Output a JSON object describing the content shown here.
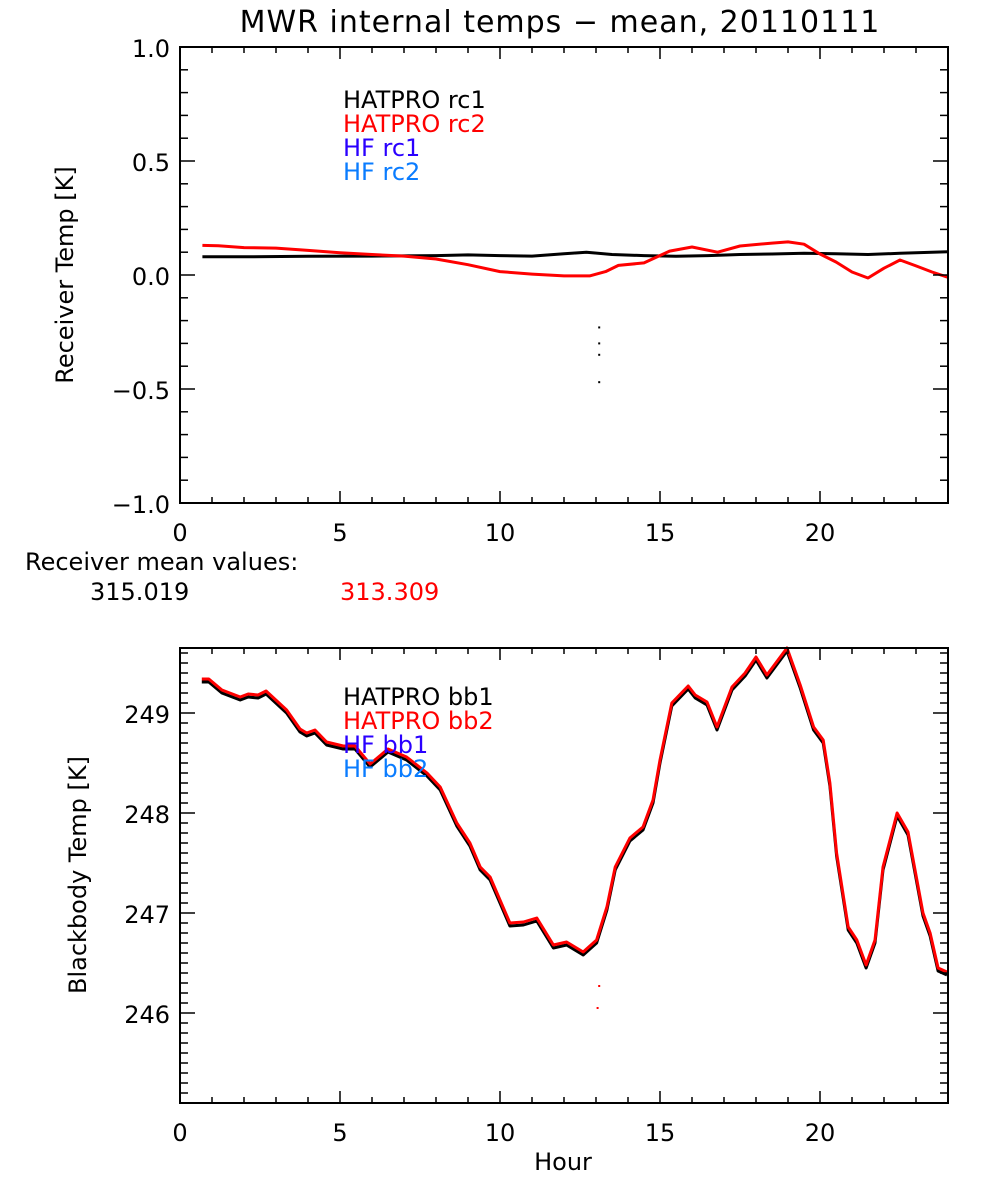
{
  "title": "MWR internal temps − mean, 20110111",
  "colors": {
    "hatpro1": "#000000",
    "hatpro2": "#ff0000",
    "hf1": "#2a00ff",
    "hf2": "#0a7cff"
  },
  "receiver_means": {
    "label": "Receiver mean values:",
    "hatpro_rc1": "315.019",
    "hatpro_rc2": "313.309"
  },
  "chart_data": [
    {
      "type": "line",
      "title": "",
      "xlabel": "",
      "ylabel": "Receiver Temp [K]",
      "xlim": [
        0,
        24
      ],
      "ylim": [
        -1.0,
        1.0
      ],
      "xticks": [
        "0",
        "5",
        "10",
        "15",
        "20"
      ],
      "yticks": [
        "−1.0",
        "−0.5",
        "0.0",
        "0.5",
        "1.0"
      ],
      "ytick_values": [
        -1.0,
        -0.5,
        0.0,
        0.5,
        1.0
      ],
      "xtick_values": [
        0,
        5,
        10,
        15,
        20
      ],
      "grid": false,
      "legend": [
        "HATPRO rc1",
        "HATPRO rc2",
        "HF rc1",
        "HF rc2"
      ],
      "legend_position": "top-left-center",
      "series": [
        {
          "name": "HATPRO rc1",
          "color": "#000000",
          "x": [
            0.7,
            2,
            4,
            6,
            8,
            9,
            10,
            11,
            12,
            12.7,
            13.5,
            14.5,
            15.5,
            16.5,
            17.5,
            18.5,
            19.5,
            20.5,
            21.5,
            22.5,
            23.5,
            24
          ],
          "y": [
            0.08,
            0.08,
            0.082,
            0.083,
            0.085,
            0.088,
            0.085,
            0.083,
            0.093,
            0.1,
            0.09,
            0.085,
            0.082,
            0.085,
            0.09,
            0.092,
            0.095,
            0.093,
            0.09,
            0.095,
            0.1,
            0.102
          ],
          "outliers_x": [
            13.1,
            13.1,
            13.1,
            13.1
          ],
          "outliers_y": [
            -0.23,
            -0.3,
            -0.35,
            -0.47
          ]
        },
        {
          "name": "HATPRO rc2",
          "color": "#ff0000",
          "x": [
            0.7,
            1.2,
            2,
            3,
            4,
            5,
            6,
            7,
            8,
            9,
            10,
            11,
            12,
            12.8,
            13.3,
            13.7,
            14.5,
            15.3,
            16,
            16.8,
            17.5,
            18.5,
            19,
            19.5,
            20,
            20.5,
            21,
            21.5,
            22,
            22.5,
            23,
            23.5,
            24
          ],
          "y": [
            0.13,
            0.128,
            0.12,
            0.118,
            0.108,
            0.098,
            0.09,
            0.083,
            0.07,
            0.045,
            0.015,
            0.004,
            -0.004,
            -0.004,
            0.015,
            0.042,
            0.053,
            0.105,
            0.123,
            0.1,
            0.127,
            0.14,
            0.145,
            0.135,
            0.092,
            0.057,
            0.013,
            -0.013,
            0.03,
            0.066,
            0.04,
            0.013,
            -0.01
          ]
        }
      ]
    },
    {
      "type": "line",
      "title": "",
      "xlabel": "Hour",
      "ylabel": "Blackbody Temp [K]",
      "xlim": [
        0,
        24
      ],
      "ylim": [
        245.1,
        249.65
      ],
      "xticks": [
        "0",
        "5",
        "10",
        "15",
        "20"
      ],
      "xtick_values": [
        0,
        5,
        10,
        15,
        20
      ],
      "yticks": [
        "246",
        "247",
        "248",
        "249"
      ],
      "ytick_values": [
        246,
        247,
        248,
        249
      ],
      "grid": false,
      "legend": [
        "HATPRO bb1",
        "HATPRO bb2",
        "HF bb1",
        "HF bb2"
      ],
      "legend_position": "top-left-center",
      "series": [
        {
          "name": "HATPRO bb2",
          "color": "#ff0000",
          "x": [
            0.68,
            0.9,
            1.31,
            1.88,
            2.13,
            2.44,
            2.69,
            3.33,
            3.75,
            3.96,
            4.22,
            4.58,
            5.1,
            5.47,
            5.94,
            6.5,
            7.08,
            7.72,
            8.13,
            8.65,
            9.06,
            9.38,
            9.69,
            10.31,
            10.73,
            11.15,
            11.67,
            12.08,
            12.6,
            13.02,
            13.34,
            13.6,
            14.06,
            14.47,
            14.78,
            15.0,
            15.37,
            15.88,
            16.1,
            16.47,
            16.78,
            17.25,
            17.66,
            18.0,
            18.34,
            18.97,
            19.38,
            19.8,
            20.1,
            20.31,
            20.52,
            20.88,
            21.15,
            21.44,
            21.72,
            21.97,
            22.41,
            22.75,
            23.22,
            23.44,
            23.69,
            23.97
          ],
          "y": [
            249.34,
            249.34,
            249.23,
            249.16,
            249.19,
            249.18,
            249.22,
            249.03,
            248.84,
            248.8,
            248.83,
            248.71,
            248.67,
            248.67,
            248.49,
            248.64,
            248.56,
            248.4,
            248.26,
            247.9,
            247.7,
            247.46,
            247.36,
            246.9,
            246.91,
            246.95,
            246.68,
            246.71,
            246.61,
            246.73,
            247.06,
            247.46,
            247.75,
            247.86,
            248.13,
            248.53,
            249.1,
            249.27,
            249.18,
            249.11,
            248.86,
            249.26,
            249.4,
            249.56,
            249.38,
            249.65,
            249.28,
            248.86,
            248.73,
            248.3,
            247.6,
            246.86,
            246.73,
            246.48,
            246.73,
            247.46,
            248.0,
            247.81,
            247.0,
            246.8,
            246.45,
            246.41
          ],
          "outliers_x": [
            13.1,
            13.05
          ],
          "outliers_y": [
            246.27,
            246.05
          ]
        },
        {
          "name": "HATPRO bb1",
          "color": "#000000",
          "offset_from_bb2": -0.03
        }
      ]
    }
  ]
}
